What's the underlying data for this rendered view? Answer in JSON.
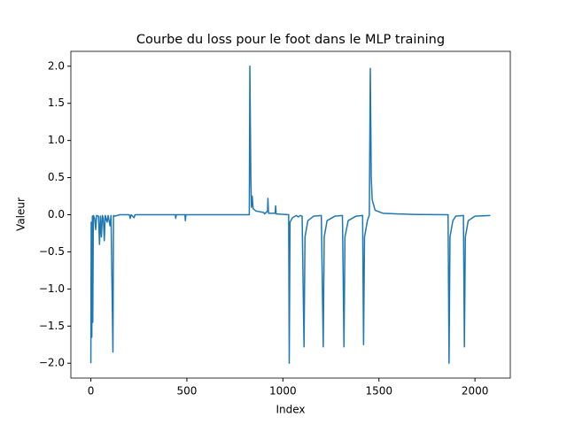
{
  "chart_data": {
    "type": "line",
    "title": "Courbe du loss pour le foot dans le MLP training",
    "x_label": "Index",
    "y_label": "Valeur",
    "xlim": [
      -104,
      2184
    ],
    "ylim": [
      -2.2,
      2.2
    ],
    "xticks": [
      0,
      500,
      1000,
      1500,
      2000
    ],
    "yticks": [
      {
        "value": 2,
        "label": "2.0"
      },
      {
        "value": 1.5,
        "label": "1.5"
      },
      {
        "value": 1,
        "label": "1.0"
      },
      {
        "value": 0.5,
        "label": "0.5"
      },
      {
        "value": 0,
        "label": "0.0"
      },
      {
        "value": -0.5,
        "label": "−0.5"
      },
      {
        "value": -1,
        "label": "−1.0"
      },
      {
        "value": -1.5,
        "label": "−1.5"
      },
      {
        "value": -2,
        "label": "−2.0"
      }
    ],
    "series": [
      {
        "color": "#1f77b4",
        "x": [
          0,
          2,
          5,
          8,
          10,
          13,
          20,
          25,
          30,
          40,
          45,
          50,
          55,
          60,
          65,
          70,
          75,
          85,
          90,
          100,
          105,
          115,
          118,
          125,
          150,
          200,
          205,
          210,
          225,
          230,
          440,
          442,
          445,
          490,
          492,
          495,
          825,
          828,
          833,
          836,
          840,
          845,
          860,
          900,
          905,
          920,
          922,
          925,
          960,
          962,
          965,
          1030,
          1033,
          1037,
          1050,
          1070,
          1080,
          1090,
          1100,
          1110,
          1115,
          1130,
          1160,
          1200,
          1210,
          1215,
          1230,
          1270,
          1310,
          1318,
          1323,
          1340,
          1380,
          1415,
          1420,
          1425,
          1440,
          1448,
          1450,
          1455,
          1460,
          1465,
          1480,
          1520,
          1600,
          1700,
          1860,
          1865,
          1870,
          1885,
          1900,
          1940,
          1945,
          1950,
          1965,
          2000,
          2080
        ],
        "values": [
          -2.0,
          -0.1,
          -1.65,
          -0.02,
          -1.45,
          -0.01,
          -0.05,
          -0.2,
          -0.01,
          -0.02,
          -0.4,
          -0.02,
          -0.3,
          -0.01,
          -0.05,
          -0.35,
          -0.01,
          -0.1,
          -0.01,
          -0.15,
          -0.01,
          -1.85,
          -0.01,
          -0.02,
          0,
          0,
          -0.05,
          0,
          -0.04,
          0,
          0,
          -0.05,
          0,
          0,
          -0.08,
          0,
          0,
          2.0,
          0.5,
          0.1,
          0.25,
          0.08,
          0.05,
          0.03,
          0.01,
          0.05,
          0.22,
          0.02,
          0.02,
          0.12,
          0.01,
          0,
          -2.0,
          -0.1,
          -0.04,
          -0.01,
          -0.03,
          -0.01,
          -0.02,
          -1.78,
          -0.3,
          -0.08,
          -0.02,
          -0.01,
          -1.78,
          -0.3,
          -0.08,
          -0.02,
          -0.01,
          -1.78,
          -0.3,
          -0.08,
          -0.02,
          -0.01,
          -1.75,
          -0.3,
          -0.08,
          -0.02,
          0,
          1.97,
          0.5,
          0.2,
          0.06,
          0.02,
          0.01,
          0.003,
          0,
          -2.0,
          -0.3,
          -0.08,
          -0.02,
          -0.01,
          -1.78,
          -0.3,
          -0.08,
          -0.02,
          -0.01
        ]
      }
    ]
  }
}
